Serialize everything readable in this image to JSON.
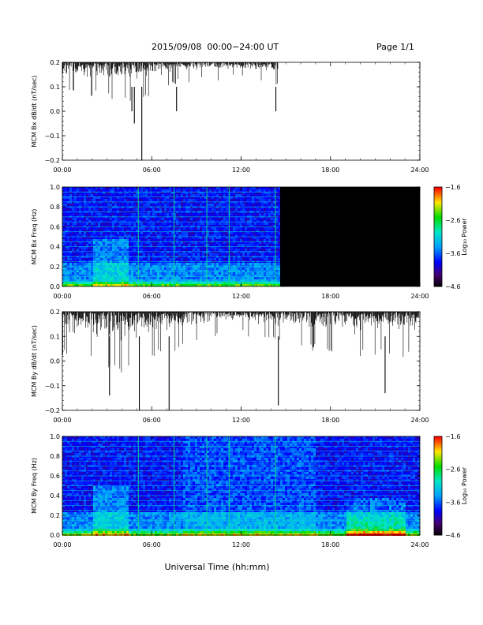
{
  "header": {
    "title": "2015/09/08  00:00−24:00 UT",
    "page": "Page 1/1"
  },
  "chart_data": [
    {
      "type": "line",
      "panel": "bx-dbdt",
      "ylabel": "MCM Bx dB/dt (nT/sec)",
      "ylim": [
        -0.2,
        0.2
      ],
      "yticks": [
        "0.2",
        "0.1",
        "0.0",
        "−0.1",
        "−0.2"
      ],
      "xlim": [
        "00:00",
        "24:00"
      ],
      "xticks": [
        "00:00",
        "06:00",
        "12:00",
        "18:00",
        "24:00"
      ],
      "data_end": "14:30",
      "series": [
        {
          "x": [
            "00:00",
            "02:00",
            "04:00",
            "05:00",
            "06:00",
            "08:00",
            "10:00",
            "12:00",
            "14:30"
          ],
          "upper": [
            0.2,
            0.2,
            0.2,
            0.2,
            0.2,
            0.2,
            0.2,
            0.2,
            0.2
          ],
          "lower": [
            0.11,
            0.09,
            0.06,
            0.05,
            0.1,
            0.14,
            0.15,
            0.15,
            0.13
          ]
        }
      ],
      "spikes": [
        {
          "x": "04:40",
          "y": 0.0
        },
        {
          "x": "04:50",
          "y": -0.05
        },
        {
          "x": "05:20",
          "y": -0.21
        },
        {
          "x": "07:40",
          "y": 0.0
        },
        {
          "x": "14:20",
          "y": 0.0
        }
      ]
    },
    {
      "type": "heatmap",
      "panel": "bx-spectrogram",
      "ylabel": "MCM Bx Freq (Hz)",
      "ylim": [
        0.0,
        1.0
      ],
      "yticks": [
        "1.0",
        "0.8",
        "0.6",
        "0.4",
        "0.2",
        "0.0"
      ],
      "xlim": [
        "00:00",
        "24:00"
      ],
      "xticks": [
        "00:00",
        "06:00",
        "12:00",
        "18:00",
        "24:00"
      ],
      "data_end": "14:30",
      "colorbar": {
        "label": "Log₁₀ Power",
        "range": [
          -4.6,
          -1.6
        ],
        "ticks": [
          "−1.6",
          "−2.6",
          "−3.6",
          "−4.6"
        ]
      }
    },
    {
      "type": "line",
      "panel": "by-dbdt",
      "ylabel": "MCM By dB/dt (nT/sec)",
      "ylim": [
        -0.2,
        0.2
      ],
      "yticks": [
        "0.2",
        "0.1",
        "0.0",
        "−0.1",
        "−0.2"
      ],
      "xlim": [
        "00:00",
        "24:00"
      ],
      "xticks": [
        "00:00",
        "06:00",
        "12:00",
        "18:00",
        "24:00"
      ],
      "data_end": "24:00",
      "series": [
        {
          "x": [
            "00:00",
            "02:00",
            "04:00",
            "06:00",
            "08:00",
            "10:00",
            "12:00",
            "14:00",
            "16:00",
            "18:00",
            "20:00",
            "22:00",
            "24:00"
          ],
          "upper": [
            0.2,
            0.2,
            0.2,
            0.2,
            0.2,
            0.2,
            0.2,
            0.2,
            0.2,
            0.2,
            0.2,
            0.2,
            0.2
          ],
          "lower": [
            0.05,
            0.03,
            -0.02,
            0.04,
            0.08,
            0.12,
            0.13,
            0.1,
            0.08,
            0.06,
            0.05,
            0.05,
            0.03
          ]
        }
      ],
      "spikes": [
        {
          "x": "03:10",
          "y": -0.14
        },
        {
          "x": "05:10",
          "y": -0.2
        },
        {
          "x": "07:10",
          "y": -0.21
        },
        {
          "x": "14:30",
          "y": -0.18
        },
        {
          "x": "21:40",
          "y": -0.13
        }
      ]
    },
    {
      "type": "heatmap",
      "panel": "by-spectrogram",
      "ylabel": "MCM By Freq (Hz)",
      "ylim": [
        0.0,
        1.0
      ],
      "yticks": [
        "1.0",
        "0.8",
        "0.6",
        "0.4",
        "0.2",
        "0.0"
      ],
      "xlim": [
        "00:00",
        "24:00"
      ],
      "xticks": [
        "00:00",
        "06:00",
        "12:00",
        "18:00",
        "24:00"
      ],
      "data_end": "24:00",
      "colorbar": {
        "label": "Log₁₀ Power",
        "range": [
          -4.6,
          -1.6
        ],
        "ticks": [
          "−1.6",
          "−2.6",
          "−3.6",
          "−4.6"
        ]
      }
    }
  ],
  "xlabel": "Universal Time (hh:mm)"
}
